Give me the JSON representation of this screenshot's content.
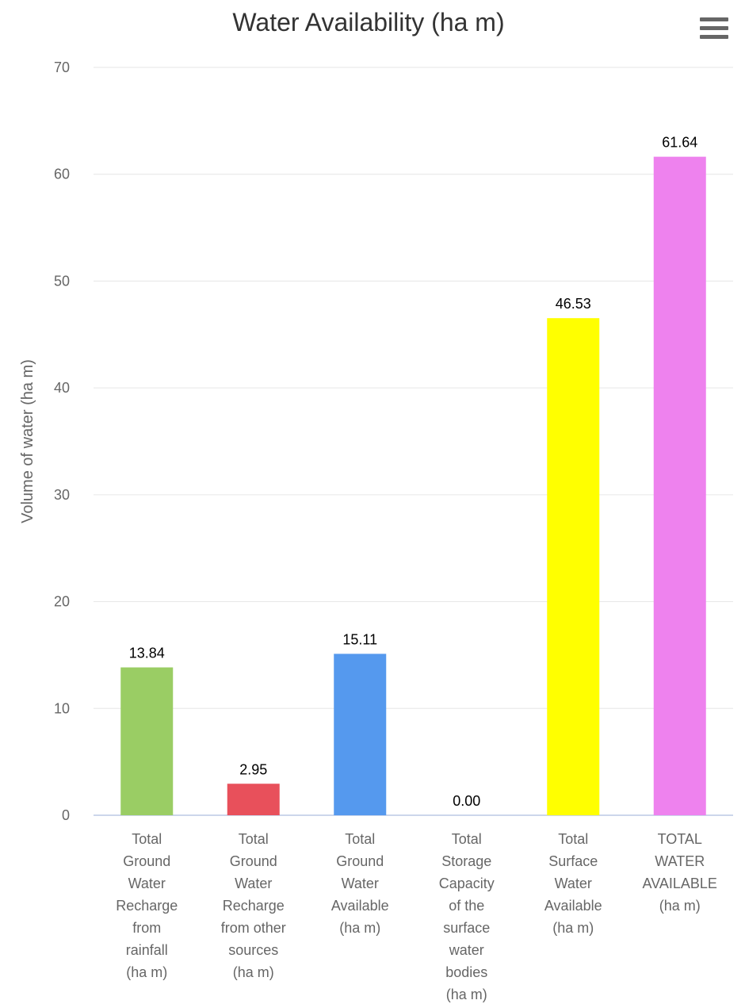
{
  "chart_data": {
    "type": "bar",
    "title": "Water Availability (ha m)",
    "ylabel": "Volume of water (ha m)",
    "xlabel": "",
    "ylim": [
      0,
      70
    ],
    "yticks": [
      0,
      10,
      20,
      30,
      40,
      50,
      60,
      70
    ],
    "categories": [
      [
        "Total",
        "Ground",
        "Water",
        "Recharge",
        "from",
        "rainfall",
        "(ha m)"
      ],
      [
        "Total",
        "Ground",
        "Water",
        "Recharge",
        "from other",
        "sources",
        "(ha m)"
      ],
      [
        "Total",
        "Ground",
        "Water",
        "Available",
        "(ha m)"
      ],
      [
        "Total",
        "Storage",
        "Capacity",
        "of the",
        "surface",
        "water",
        "bodies",
        "(ha m)"
      ],
      [
        "Total",
        "Surface",
        "Water",
        "Available",
        "(ha m)"
      ],
      [
        "TOTAL",
        "WATER",
        "AVAILABLE",
        "(ha m)"
      ]
    ],
    "values": [
      13.84,
      2.95,
      15.11,
      0.0,
      46.53,
      61.64
    ],
    "data_labels": [
      "13.84",
      "2.95",
      "15.11",
      "0.00",
      "46.53",
      "61.64"
    ],
    "colors": [
      "#9ACD64",
      "#E8505B",
      "#5599EE",
      "#888888",
      "#FFFF00",
      "#EE82EE"
    ],
    "grid": true,
    "legend": "none"
  },
  "ui": {
    "menu_icon": "hamburger-menu-icon"
  }
}
